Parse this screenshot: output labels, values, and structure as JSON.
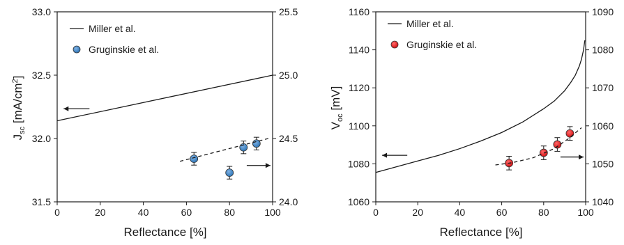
{
  "chart_data": [
    {
      "type": "scatter",
      "xlabel": "Reflectance [%]",
      "ylabel_main": "J",
      "ylabel_sub": "sc",
      "ylabel_unit_pre": " [mA/cm",
      "ylabel_unit_sup": "2",
      "ylabel_unit_post": "]",
      "xlim": [
        0,
        100
      ],
      "ylim": [
        31.5,
        33.0
      ],
      "y2lim": [
        24.0,
        25.5
      ],
      "xticks": [
        0,
        20,
        40,
        60,
        80,
        100
      ],
      "yticks": [
        31.5,
        32.0,
        32.5,
        33.0
      ],
      "y2ticks": [
        24.0,
        24.5,
        25.0,
        25.5
      ],
      "ytick_labels": [
        "31.5",
        "32.0",
        "32.5",
        "33.0"
      ],
      "y2tick_labels": [
        "24.0",
        "24.5",
        "25.0",
        "25.5"
      ],
      "grid": false,
      "legend_position": "top-left",
      "series": [
        {
          "name": "Miller et al.",
          "kind": "line",
          "axis": "left",
          "color": "#1a1a1a",
          "x": [
            0,
            100
          ],
          "y": [
            32.14,
            32.5
          ]
        },
        {
          "name": "Gruginskie et al.",
          "kind": "points",
          "axis": "right",
          "color": "#2e75b6",
          "x": [
            63.5,
            80.0,
            86.5,
            92.5
          ],
          "y": [
            24.34,
            24.23,
            24.43,
            24.46
          ],
          "err": [
            0.05,
            0.05,
            0.05,
            0.05
          ]
        },
        {
          "name": "",
          "kind": "trend",
          "axis": "right",
          "color": "#1a1a1a",
          "x": [
            57.0,
            98.0
          ],
          "y": [
            24.32,
            24.5
          ]
        }
      ],
      "arrows": [
        {
          "direction": "left",
          "x": [
            15,
            3
          ],
          "axis": "left",
          "y": 32.235
        },
        {
          "direction": "right",
          "x": [
            88,
            99
          ],
          "axis": "right",
          "y": 24.287
        }
      ]
    },
    {
      "type": "scatter",
      "xlabel": "Reflectance [%]",
      "ylabel_main": "V",
      "ylabel_sub": "oc",
      "ylabel_unit_pre": " [mV]",
      "ylabel_unit_sup": "",
      "ylabel_unit_post": "",
      "xlim": [
        0,
        100
      ],
      "ylim": [
        1060,
        1160
      ],
      "y2lim": [
        1040,
        1090
      ],
      "xticks": [
        0,
        20,
        40,
        60,
        80,
        100
      ],
      "yticks": [
        1060,
        1080,
        1100,
        1120,
        1140,
        1160
      ],
      "y2ticks": [
        1040,
        1050,
        1060,
        1070,
        1080,
        1090
      ],
      "ytick_labels": [
        "1060",
        "1080",
        "1100",
        "1120",
        "1140",
        "1160"
      ],
      "y2tick_labels": [
        "1040",
        "1050",
        "1060",
        "1070",
        "1080",
        "1090"
      ],
      "grid": false,
      "legend_position": "top-left",
      "series": [
        {
          "name": "Miller et al.",
          "kind": "line",
          "axis": "left",
          "color": "#1a1a1a",
          "x": [
            0,
            10,
            20,
            30,
            40,
            50,
            60,
            70,
            80,
            85,
            90,
            93,
            95,
            97,
            98,
            99,
            99.6
          ],
          "y": [
            1075.5,
            1078.5,
            1081.5,
            1084.5,
            1088,
            1092,
            1096.5,
            1102,
            1109,
            1113,
            1118.5,
            1123,
            1126.5,
            1131.5,
            1135,
            1140,
            1145
          ]
        },
        {
          "name": "Gruginskie et al.",
          "kind": "points",
          "axis": "right",
          "color": "#e41a1c",
          "x": [
            63.5,
            80.0,
            86.5,
            92.5
          ],
          "y": [
            1050.2,
            1052.9,
            1055.1,
            1058.0
          ],
          "err": [
            1.8,
            1.8,
            1.8,
            1.8
          ]
        },
        {
          "name": "",
          "kind": "trend",
          "axis": "right",
          "color": "#1a1a1a",
          "x": [
            57,
            65,
            75,
            85,
            92,
            98
          ],
          "y": [
            1049.7,
            1050.3,
            1051.6,
            1054.0,
            1056.7,
            1059.5
          ]
        }
      ],
      "arrows": [
        {
          "direction": "left",
          "x": [
            15,
            3
          ],
          "axis": "left",
          "y": 1084.5
        },
        {
          "direction": "right",
          "x": [
            88,
            99
          ],
          "axis": "right",
          "y": 1051.8
        }
      ]
    }
  ]
}
